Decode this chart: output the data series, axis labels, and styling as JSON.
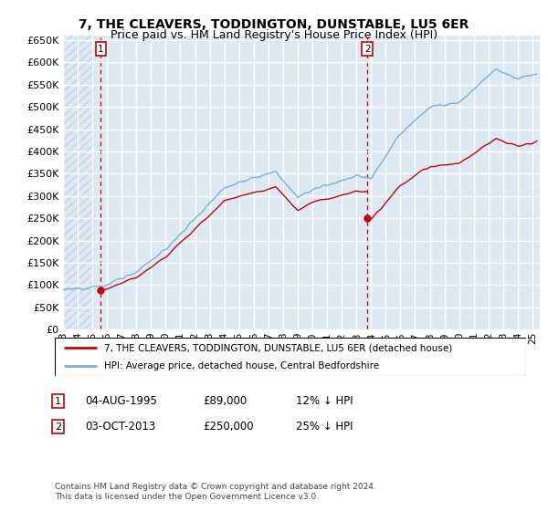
{
  "title": "7, THE CLEAVERS, TODDINGTON, DUNSTABLE, LU5 6ER",
  "subtitle": "Price paid vs. HM Land Registry's House Price Index (HPI)",
  "ylim": [
    0,
    660000
  ],
  "yticks": [
    0,
    50000,
    100000,
    150000,
    200000,
    250000,
    300000,
    350000,
    400000,
    450000,
    500000,
    550000,
    600000,
    650000
  ],
  "ytick_labels": [
    "£0",
    "£50K",
    "£100K",
    "£150K",
    "£200K",
    "£250K",
    "£300K",
    "£350K",
    "£400K",
    "£450K",
    "£500K",
    "£550K",
    "£600K",
    "£650K"
  ],
  "bg_color": "#dce9f5",
  "hatch_color": "#b8cfe0",
  "grid_color": "#ffffff",
  "sale1_year": 1995.58,
  "sale1_price": 89000,
  "sale2_year": 2013.75,
  "sale2_price": 250000,
  "sale1_label": "1",
  "sale2_label": "2",
  "legend_line1": "7, THE CLEAVERS, TODDINGTON, DUNSTABLE, LU5 6ER (detached house)",
  "legend_line2": "HPI: Average price, detached house, Central Bedfordshire",
  "red_line_color": "#cc0000",
  "blue_line_color": "#7bafd4",
  "dashed_line_color": "#cc0000",
  "title_fontsize": 10,
  "subtitle_fontsize": 9,
  "tick_fontsize": 8,
  "xstart": 1993,
  "xend": 2025.5
}
